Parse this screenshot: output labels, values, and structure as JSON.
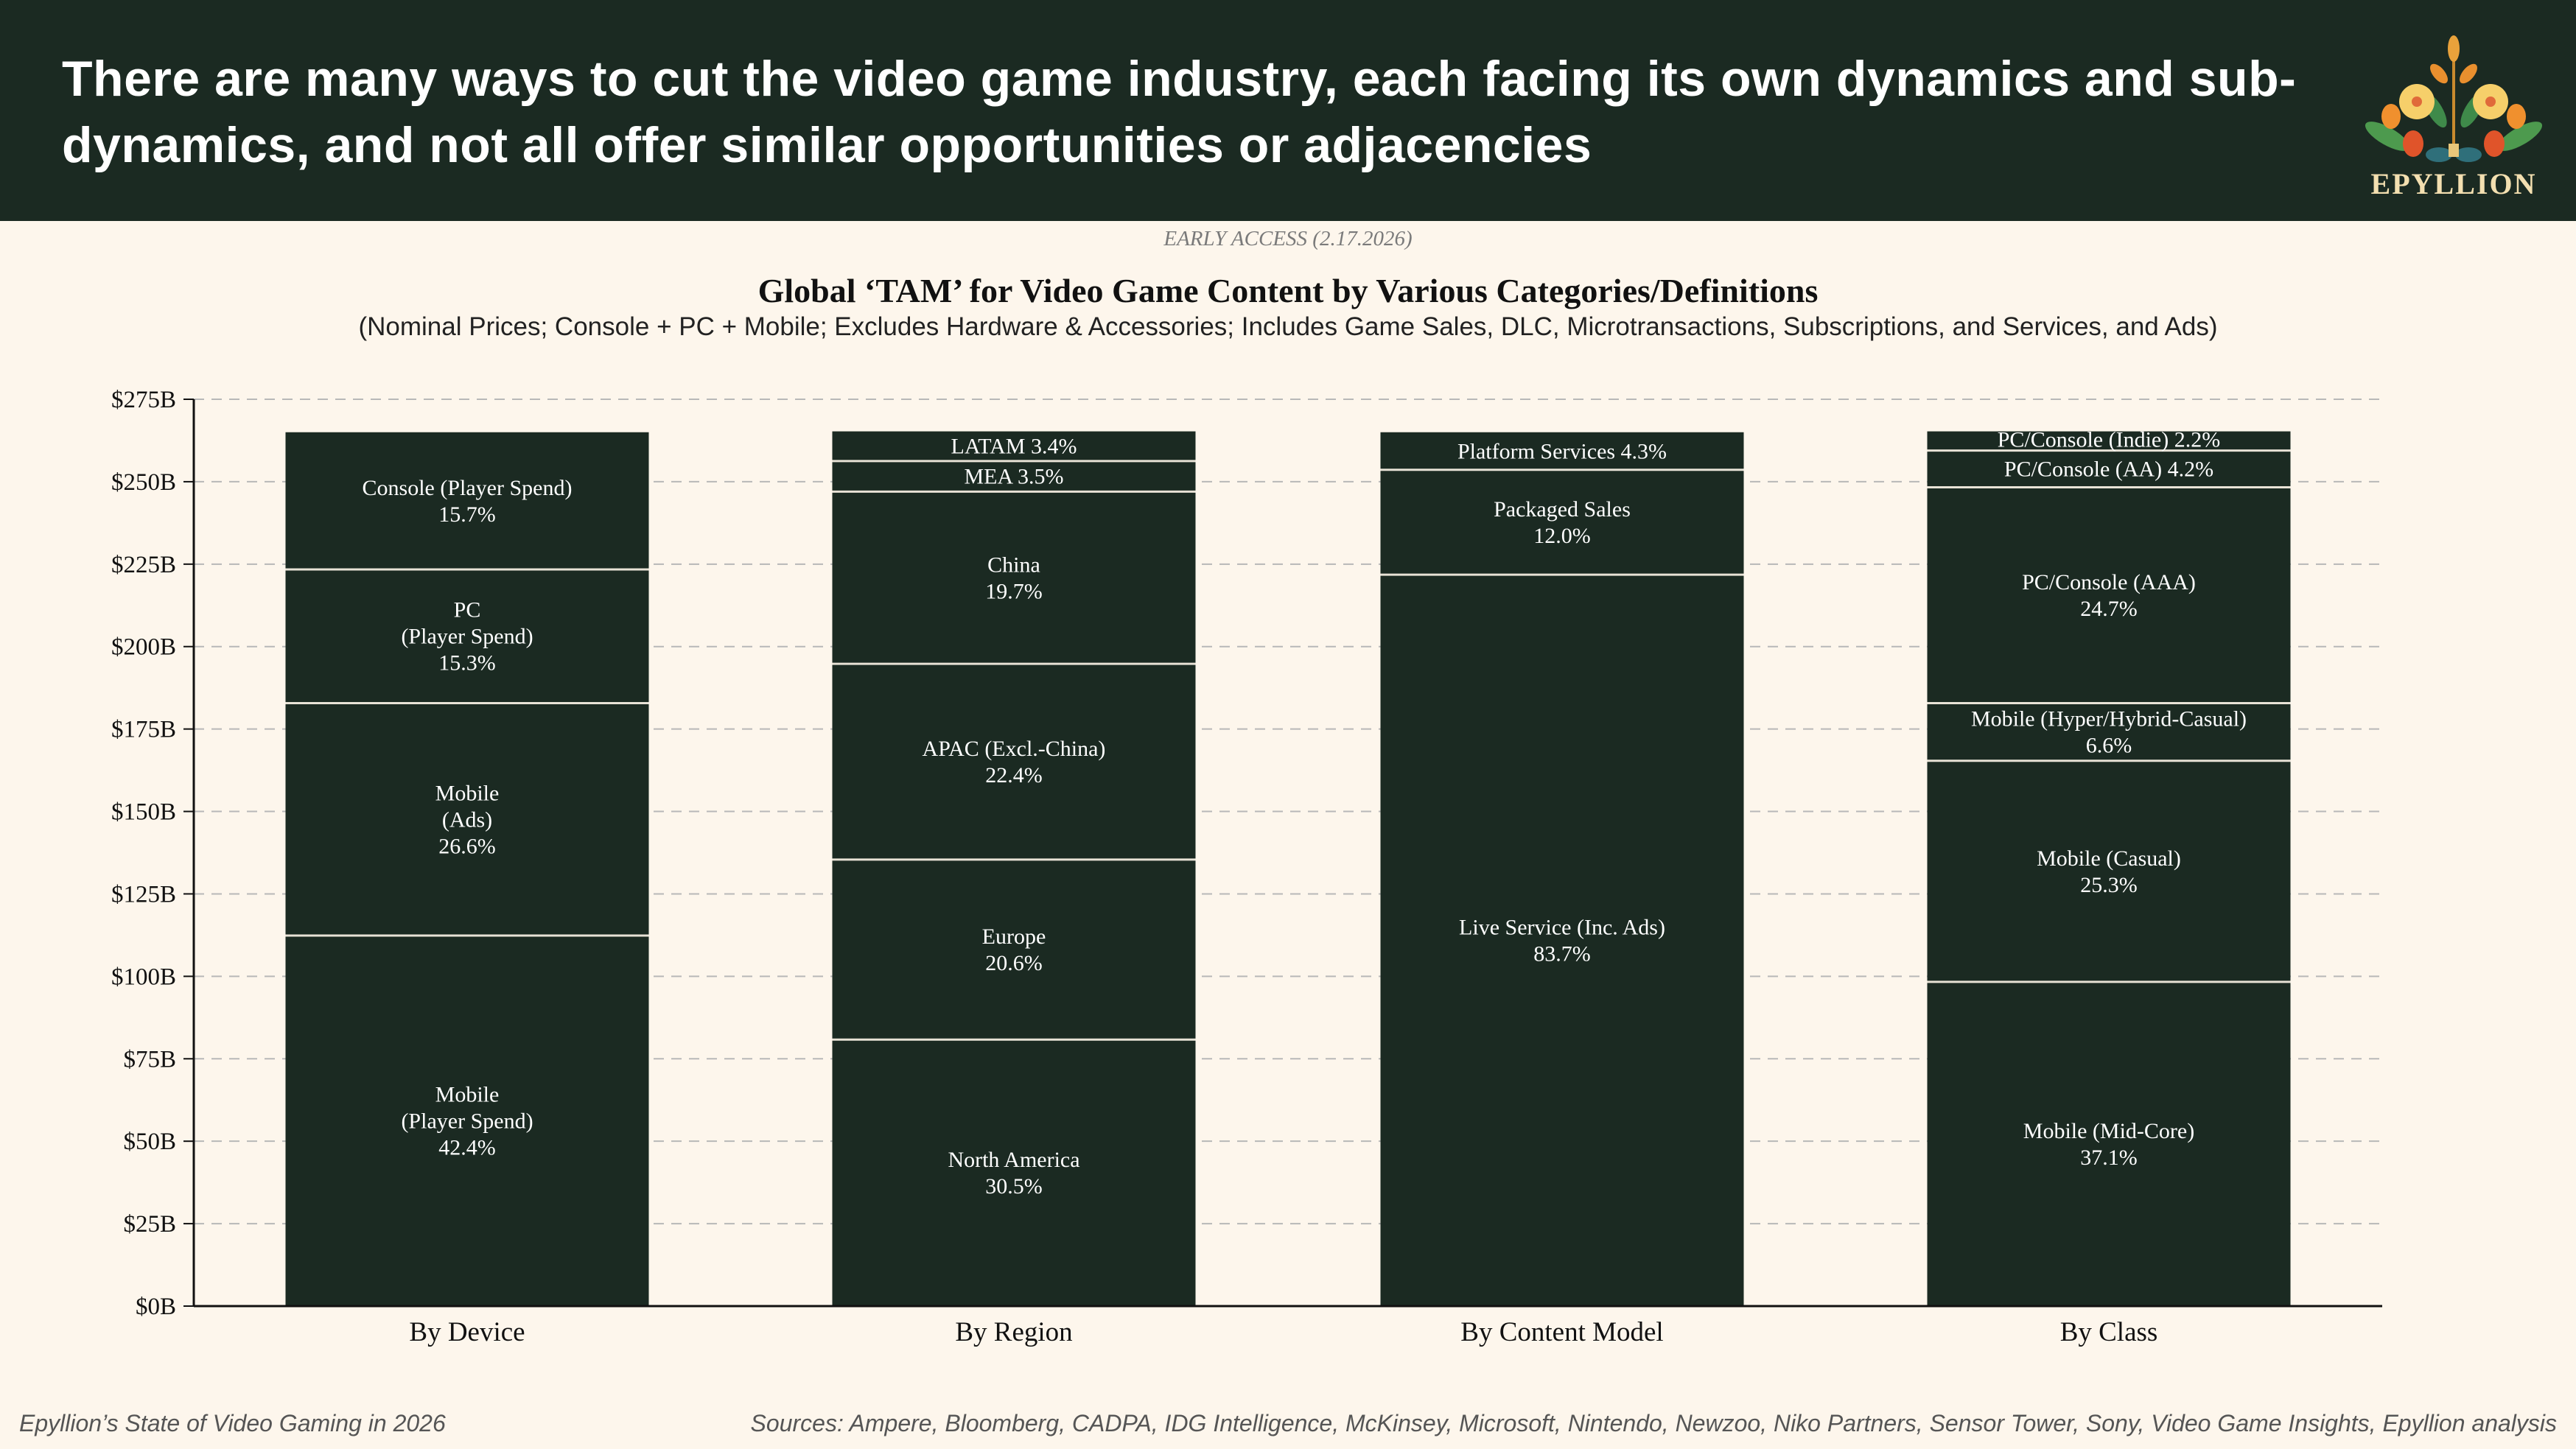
{
  "header": {
    "title": "There are many ways to cut the video game industry, each facing its own dynamics and sub-dynamics, and not all offer similar opportunities or adjacencies",
    "logo_text": "EPYLLION"
  },
  "early_access": "EARLY ACCESS (2.17.2026)",
  "chart_data": {
    "type": "bar",
    "stacked": true,
    "title": "Global ‘TAM’ for Video Game Content by Various Categories/Definitions",
    "subtitle": "(Nominal Prices; Console + PC + Mobile; Excludes Hardware & Accessories; Includes Game Sales, DLC, Microtransactions, Subscriptions, and Services, and Ads)",
    "xlabel": "",
    "ylabel": "",
    "ylim": [
      0,
      275
    ],
    "yticks": [
      "$0B",
      "$25B",
      "$50B",
      "$75B",
      "$100B",
      "$125B",
      "$150B",
      "$175B",
      "$200B",
      "$225B",
      "$250B",
      "$275B"
    ],
    "grid": true,
    "total_billion": 265,
    "colors": {
      "segment": "#1b2a22",
      "divider": "#e8e2d6",
      "grid": "#b8b8b8"
    },
    "categories": [
      "By Device",
      "By Region",
      "By Content Model",
      "By Class"
    ],
    "stacks": [
      {
        "category": "By Device",
        "segments": [
          {
            "label": "Mobile\n(Player Spend)\n42.4%",
            "pct": 42.4
          },
          {
            "label": "Mobile\n(Ads)\n26.6%",
            "pct": 26.6
          },
          {
            "label": "PC\n(Player Spend)\n15.3%",
            "pct": 15.3
          },
          {
            "label": "Console (Player Spend)\n15.7%",
            "pct": 15.7
          }
        ]
      },
      {
        "category": "By Region",
        "segments": [
          {
            "label": "North America\n30.5%",
            "pct": 30.5
          },
          {
            "label": "Europe\n20.6%",
            "pct": 20.6
          },
          {
            "label": "APAC (Excl.-China)\n22.4%",
            "pct": 22.4
          },
          {
            "label": "China\n19.7%",
            "pct": 19.7
          },
          {
            "label": "MEA 3.5%",
            "pct": 3.5
          },
          {
            "label": "LATAM 3.4%",
            "pct": 3.4
          }
        ]
      },
      {
        "category": "By Content Model",
        "segments": [
          {
            "label": "Live Service (Inc. Ads)\n83.7%",
            "pct": 83.7
          },
          {
            "label": "Packaged Sales\n12.0%",
            "pct": 12.0
          },
          {
            "label": "Platform Services 4.3%",
            "pct": 4.3
          }
        ]
      },
      {
        "category": "By Class",
        "segments": [
          {
            "label": "Mobile (Mid-Core)\n37.1%",
            "pct": 37.1
          },
          {
            "label": "Mobile (Casual)\n25.3%",
            "pct": 25.3
          },
          {
            "label": "Mobile (Hyper/Hybrid-Casual)\n6.6%",
            "pct": 6.6
          },
          {
            "label": "PC/Console (AAA)\n24.7%",
            "pct": 24.7
          },
          {
            "label": "PC/Console (AA) 4.2%",
            "pct": 4.2
          },
          {
            "label": "PC/Console (Indie) 2.2%",
            "pct": 2.2
          }
        ]
      }
    ]
  },
  "footer": {
    "left": "Epyllion’s State of Video Gaming in 2026",
    "sources": "Sources: Ampere, Bloomberg, CADPA, IDG Intelligence, McKinsey, Microsoft, Nintendo, Newzoo, Niko Partners, Sensor Tower, Sony, Video Game Insights, Epyllion analysis"
  }
}
